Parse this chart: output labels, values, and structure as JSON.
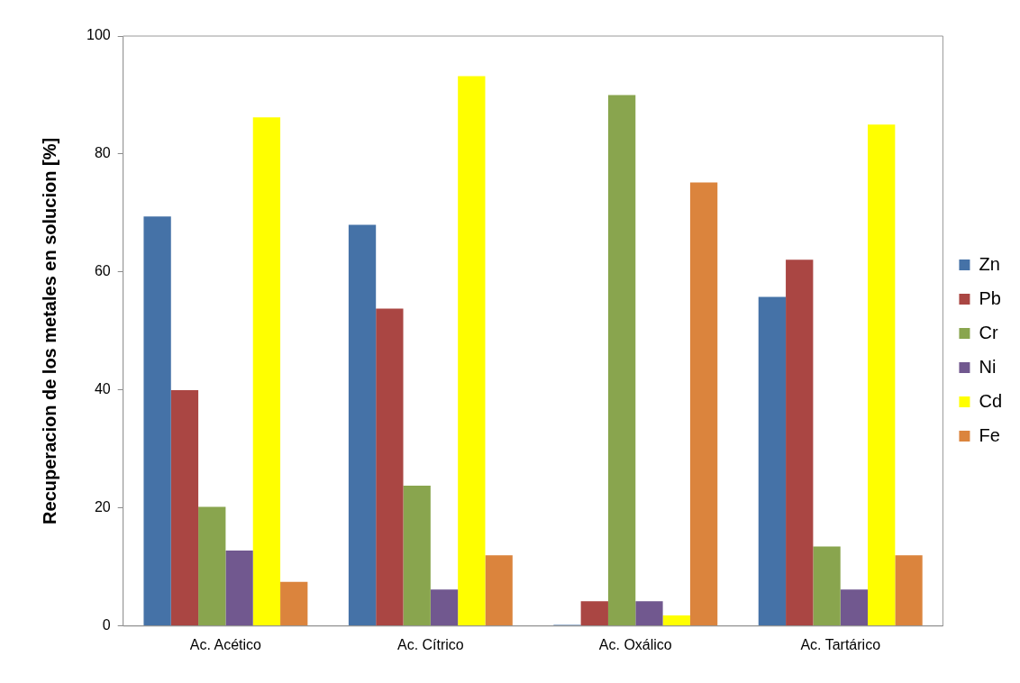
{
  "chart_data": {
    "type": "bar",
    "ylabel": "Recuperacion de los metales en solucion [%]",
    "categories": [
      "Ac. Acético",
      "Ac. Cítrico",
      "Ac. Oxálico",
      "Ac. Tartárico"
    ],
    "series": [
      {
        "name": "Zn",
        "color": "#4572a7",
        "values": [
          69.4,
          68,
          0.2,
          55.8
        ]
      },
      {
        "name": "Pb",
        "color": "#aa4643",
        "values": [
          40,
          53.8,
          4.2,
          62.1
        ]
      },
      {
        "name": "Cr",
        "color": "#89a54e",
        "values": [
          20.2,
          23.8,
          90,
          13.5
        ]
      },
      {
        "name": "Ni",
        "color": "#71588f",
        "values": [
          12.8,
          6.2,
          4.2,
          6.2
        ]
      },
      {
        "name": "Cd",
        "color": "#ffff00",
        "values": [
          86.2,
          93.2,
          1.8,
          85
        ]
      },
      {
        "name": "Fe",
        "color": "#db843d",
        "values": [
          7.5,
          12,
          75.2,
          12
        ]
      }
    ],
    "ylim": [
      0,
      100
    ],
    "yticks": [
      0,
      20,
      40,
      60,
      80,
      100
    ],
    "grid": false,
    "legend": "right"
  }
}
